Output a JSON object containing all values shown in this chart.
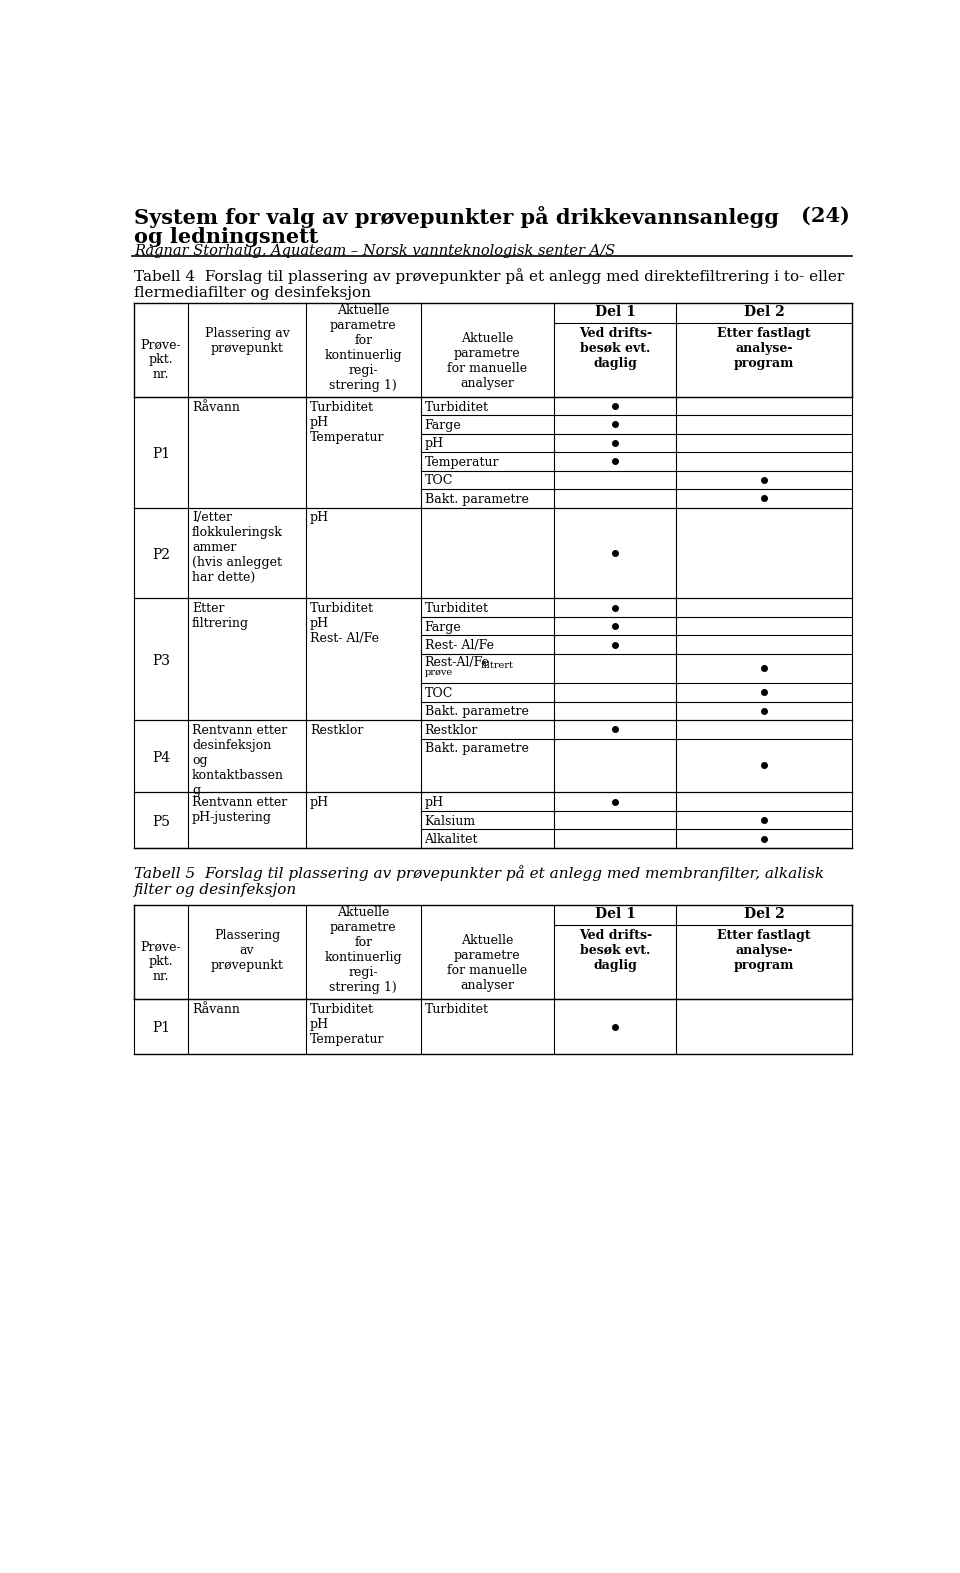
{
  "title_line1": "System for valg av prøvepunkter på drikkevannsanlegg",
  "title_number": "(24)",
  "title_line2": "og ledningsnett",
  "subtitle": "Ragnar Storhaug, Aquateam – Norsk vannteknologisk senter A/S",
  "table4_caption": "Tabell 4  Forslag til plassering av prøvepunkter på et anlegg med direktefiltrering i to- eller\nflermediafilter og desinfeksjon",
  "table5_caption": "Tabell 5  Forslag til plassering av prøvepunkter på et anlegg med membranfilter, alkalisk\nfilter og desinfeksjon",
  "col_headers_top": [
    "",
    "",
    "",
    "",
    "Del 1",
    "Del 2"
  ],
  "col_headers_bot": [
    "Prøve-\npkt.\nnr.",
    "Plassering av\nprøvepunkt",
    "Aktuelle\nparametre\nfor\nkontinuerlig\nregi-\nstrering 1)",
    "Aktuelle\nparametre\nfor manuelle\nanalyser",
    "Ved drifts-\nbesøk evt.\ndaglig",
    "Etter fastlagt\nanalyse-\nprogram"
  ],
  "col5_header_top": [
    "Prøve-\npkt.\nnr.",
    "Plassering\nav\nprøvepunkt",
    "Aktuelle\nparametre\nfor\nkontinuerlig\nregi-\nstrering 1)",
    "Aktuelle\nparametre\nfor manuelle\nanalyser",
    "Ved drifts-\nbesøk evt.\ndaglig",
    "Etter fastlagt\nanalyse-\nprogram"
  ],
  "rows_t4": [
    {
      "pkt": "P1",
      "plassering": "Råvann",
      "kontinuerlig": "Turbiditet\npH\nTemperatur",
      "sub_rows": [
        {
          "manuell": "Turbiditet",
          "del1": true,
          "del2": false
        },
        {
          "manuell": "Farge",
          "del1": true,
          "del2": false
        },
        {
          "manuell": "pH",
          "del1": true,
          "del2": false
        },
        {
          "manuell": "Temperatur",
          "del1": true,
          "del2": false
        },
        {
          "manuell": "TOC",
          "del1": false,
          "del2": true
        },
        {
          "manuell": "Bakt. parametre",
          "del1": false,
          "del2": true
        }
      ]
    },
    {
      "pkt": "P2",
      "plassering": "I/etter\nflokkuleringsk\nammer\n(hvis anlegget\nhar dette)",
      "kontinuerlig": "pH",
      "sub_rows": [
        {
          "manuell": "",
          "del1": true,
          "del2": false
        }
      ]
    },
    {
      "pkt": "P3",
      "plassering": "Etter\nfiltrering",
      "kontinuerlig": "Turbiditet\npH\nRest- Al/Fe",
      "sub_rows": [
        {
          "manuell": "Turbiditet",
          "del1": true,
          "del2": false
        },
        {
          "manuell": "Farge",
          "del1": true,
          "del2": false
        },
        {
          "manuell": "Rest- Al/Fe",
          "del1": true,
          "del2": false
        },
        {
          "manuell": "Rest-Al/Fe_filtrert_prove",
          "del1": false,
          "del2": true
        },
        {
          "manuell": "TOC",
          "del1": false,
          "del2": true
        },
        {
          "manuell": "Bakt. parametre",
          "del1": false,
          "del2": true
        }
      ]
    },
    {
      "pkt": "P4",
      "plassering": "Rentvann etter\ndesinfeksjon\nog\nkontaktbassen\ng",
      "kontinuerlig": "Restklor",
      "sub_rows": [
        {
          "manuell": "Restklor",
          "del1": true,
          "del2": false
        },
        {
          "manuell": "Bakt. parametre",
          "del1": false,
          "del2": true
        }
      ]
    },
    {
      "pkt": "P5",
      "plassering": "Rentvann etter\npH-justering",
      "kontinuerlig": "pH",
      "sub_rows": [
        {
          "manuell": "pH",
          "del1": true,
          "del2": false
        },
        {
          "manuell": "Kalsium",
          "del1": false,
          "del2": true
        },
        {
          "manuell": "Alkalitet",
          "del1": false,
          "del2": true
        }
      ]
    }
  ],
  "rows_t5": [
    {
      "pkt": "P1",
      "plassering": "Råvann",
      "kontinuerlig": "Turbiditet\npH\nTemperatur",
      "sub_rows": [
        {
          "manuell": "Turbiditet",
          "del1": true,
          "del2": false
        }
      ]
    }
  ]
}
